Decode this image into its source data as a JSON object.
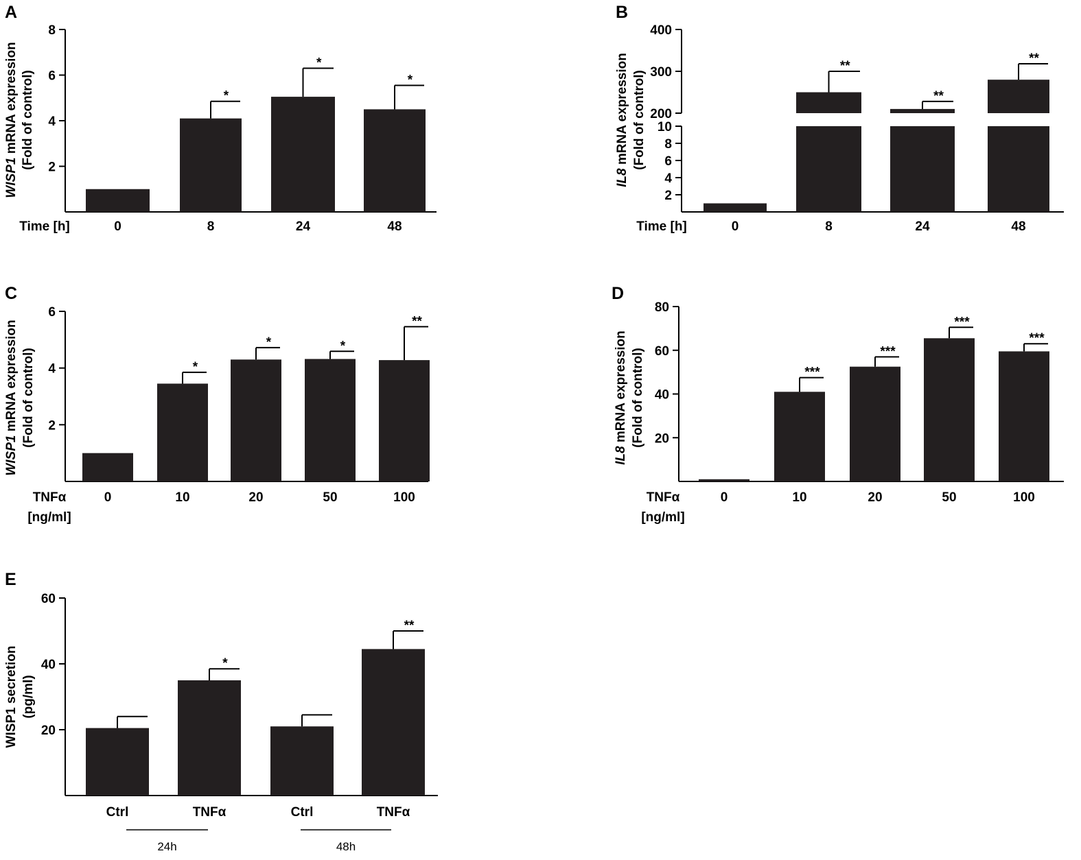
{
  "chart_data": [
    {
      "panel": "A",
      "type": "bar",
      "categories": [
        "0",
        "8",
        "24",
        "48"
      ],
      "values": [
        1.0,
        4.1,
        5.05,
        4.5
      ],
      "errors": [
        0,
        0.75,
        1.25,
        1.05
      ],
      "significance": [
        "",
        "*",
        "*",
        "*"
      ],
      "xlabel": "Time [h]",
      "xlabel2": "",
      "ylabel_gene": "WISP1",
      "ylabel_rest": " mRNA expression",
      "ylabel2": "(Fold of control)",
      "ylim": [
        0,
        8
      ],
      "yticks": [
        2,
        4,
        6,
        8
      ]
    },
    {
      "panel": "B",
      "type": "bar",
      "broken_axis": true,
      "categories": [
        "0",
        "8",
        "24",
        "48"
      ],
      "values": [
        1.0,
        250,
        210,
        280
      ],
      "errors": [
        0,
        50,
        18,
        38
      ],
      "significance": [
        "",
        "**",
        "**",
        "**"
      ],
      "xlabel": "Time [h]",
      "xlabel2": "",
      "ylabel_gene": "IL8",
      "ylabel_rest": " mRNA expression",
      "ylabel2": "(Fold of control)",
      "lower_ylim": [
        0,
        10
      ],
      "lower_yticks": [
        2,
        4,
        6,
        8,
        10
      ],
      "upper_ylim": [
        200,
        400
      ],
      "upper_yticks": [
        200,
        300,
        400
      ]
    },
    {
      "panel": "C",
      "type": "bar",
      "categories": [
        "0",
        "10",
        "20",
        "50",
        "100"
      ],
      "values": [
        1.0,
        3.45,
        4.3,
        4.32,
        4.28
      ],
      "errors": [
        0,
        0.4,
        0.42,
        0.27,
        1.18
      ],
      "significance": [
        "",
        "*",
        "*",
        "*",
        "**"
      ],
      "xlabel": "TNFα",
      "xlabel2": "[ng/ml]",
      "ylabel_gene": "WISP1",
      "ylabel_rest": " mRNA expression",
      "ylabel2": "(Fold of control)",
      "ylim": [
        0,
        6
      ],
      "yticks": [
        2,
        4,
        6
      ]
    },
    {
      "panel": "D",
      "type": "bar",
      "categories": [
        "0",
        "10",
        "20",
        "50",
        "100"
      ],
      "values": [
        1.0,
        41,
        52.5,
        65.5,
        59.5
      ],
      "errors": [
        0,
        6.5,
        4.5,
        5.0,
        3.5
      ],
      "significance": [
        "",
        "***",
        "***",
        "***",
        "***"
      ],
      "xlabel": "TNFα",
      "xlabel2": "[ng/ml]",
      "ylabel_gene": "IL8",
      "ylabel_rest": " mRNA expression",
      "ylabel2": "(Fold of control)",
      "ylim": [
        0,
        80
      ],
      "yticks": [
        20,
        40,
        60,
        80
      ]
    },
    {
      "panel": "E",
      "type": "bar",
      "categories": [
        "Ctrl",
        "TNFα",
        "Ctrl",
        "TNFα"
      ],
      "values": [
        20.5,
        35,
        21,
        44.5
      ],
      "errors": [
        3.5,
        3.5,
        3.5,
        5.5
      ],
      "significance": [
        "",
        "*",
        "",
        "**"
      ],
      "groups": [
        "24h",
        "48h"
      ],
      "xlabel": "",
      "xlabel2": "",
      "ylabel_gene": "",
      "ylabel_rest": "WISP1 secretion",
      "ylabel2": "(pg/ml)",
      "ylim": [
        0,
        60
      ],
      "yticks": [
        20,
        40,
        60
      ]
    }
  ]
}
